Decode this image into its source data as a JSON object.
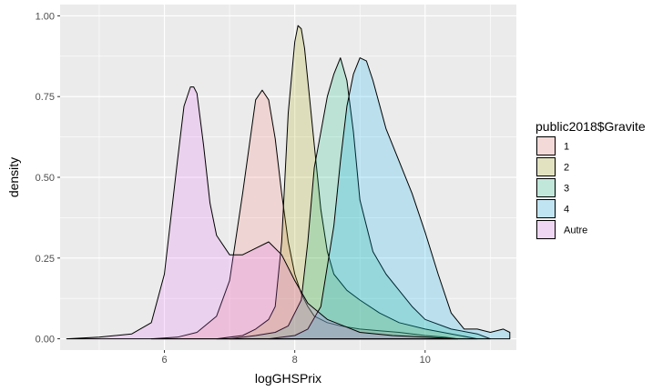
{
  "chart_data": {
    "type": "area",
    "xlabel": "logGHSPrix",
    "ylabel": "density",
    "xlim": [
      4.4,
      11.4
    ],
    "ylim": [
      -0.035,
      1.035
    ],
    "x_ticks": [
      6,
      8,
      10
    ],
    "x_tick_labels": [
      "6",
      "8",
      "10"
    ],
    "y_ticks": [
      0,
      0.25,
      0.5,
      0.75,
      1.0
    ],
    "y_tick_labels": [
      "0.00",
      "0.25",
      "0.50",
      "0.75",
      "1.00"
    ],
    "grid": true,
    "legend_title": "public2018$Gravite",
    "legend_position": "right",
    "series": [
      {
        "name": "1",
        "color": "#F8766D",
        "x": [
          5.8,
          6.2,
          6.5,
          6.8,
          7.0,
          7.2,
          7.4,
          7.5,
          7.6,
          7.7,
          7.8,
          7.9,
          8.0,
          8.1,
          8.2,
          8.3,
          8.5,
          8.7,
          9.0,
          9.3,
          9.6,
          10.0,
          10.3,
          10.5
        ],
        "y": [
          0.0,
          0.005,
          0.02,
          0.07,
          0.18,
          0.45,
          0.74,
          0.77,
          0.74,
          0.62,
          0.45,
          0.3,
          0.2,
          0.14,
          0.1,
          0.07,
          0.05,
          0.04,
          0.03,
          0.025,
          0.02,
          0.01,
          0.005,
          0.0
        ]
      },
      {
        "name": "2",
        "color": "#A3A500",
        "x": [
          6.8,
          7.2,
          7.4,
          7.6,
          7.7,
          7.8,
          7.9,
          8.0,
          8.05,
          8.1,
          8.15,
          8.2,
          8.3,
          8.4,
          8.5,
          8.6,
          8.8,
          9.0,
          9.3,
          9.6,
          10.0,
          10.4,
          10.8
        ],
        "y": [
          0.0,
          0.01,
          0.03,
          0.06,
          0.1,
          0.3,
          0.7,
          0.92,
          0.97,
          0.96,
          0.9,
          0.8,
          0.6,
          0.4,
          0.27,
          0.2,
          0.15,
          0.12,
          0.08,
          0.05,
          0.03,
          0.015,
          0.0
        ]
      },
      {
        "name": "3",
        "color": "#00BF7D",
        "x": [
          7.0,
          7.4,
          7.7,
          7.9,
          8.1,
          8.2,
          8.3,
          8.4,
          8.5,
          8.6,
          8.7,
          8.8,
          8.9,
          9.0,
          9.2,
          9.4,
          9.6,
          9.8,
          10.0,
          10.4,
          10.8,
          11.0
        ],
        "y": [
          0.0,
          0.01,
          0.02,
          0.04,
          0.12,
          0.3,
          0.53,
          0.64,
          0.75,
          0.82,
          0.87,
          0.8,
          0.64,
          0.43,
          0.27,
          0.2,
          0.15,
          0.1,
          0.06,
          0.03,
          0.015,
          0.0
        ]
      },
      {
        "name": "4",
        "color": "#00B0F6",
        "x": [
          7.6,
          8.0,
          8.2,
          8.4,
          8.6,
          8.7,
          8.8,
          8.9,
          9.0,
          9.1,
          9.2,
          9.4,
          9.6,
          9.8,
          10.0,
          10.2,
          10.4,
          10.6,
          10.8,
          11.0,
          11.2,
          11.3
        ],
        "y": [
          0.0,
          0.01,
          0.03,
          0.1,
          0.35,
          0.55,
          0.72,
          0.82,
          0.87,
          0.86,
          0.8,
          0.65,
          0.55,
          0.45,
          0.33,
          0.2,
          0.08,
          0.03,
          0.03,
          0.02,
          0.03,
          0.02
        ]
      },
      {
        "name": "Autre",
        "color": "#E76BF3",
        "x": [
          4.5,
          5.0,
          5.5,
          5.8,
          6.0,
          6.2,
          6.3,
          6.4,
          6.45,
          6.5,
          6.6,
          6.7,
          6.8,
          7.0,
          7.2,
          7.4,
          7.6,
          7.8,
          8.0,
          8.2,
          8.5,
          9.0,
          9.5,
          10.0,
          10.5
        ],
        "y": [
          0.0,
          0.005,
          0.015,
          0.05,
          0.2,
          0.55,
          0.72,
          0.78,
          0.78,
          0.76,
          0.6,
          0.42,
          0.32,
          0.26,
          0.26,
          0.28,
          0.3,
          0.26,
          0.18,
          0.11,
          0.06,
          0.02,
          0.01,
          0.005,
          0.0
        ]
      }
    ]
  }
}
